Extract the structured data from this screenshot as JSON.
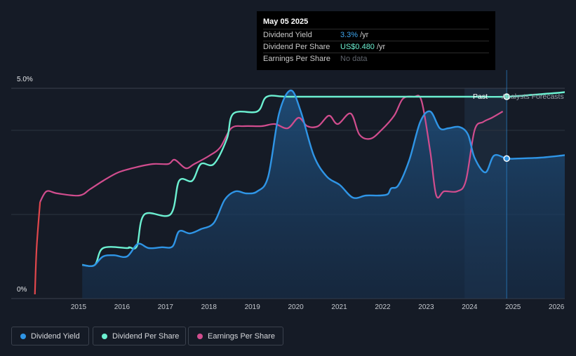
{
  "tooltip": {
    "date": "May 05 2025",
    "rows": [
      {
        "label": "Dividend Yield",
        "value": "3.3%",
        "unit": "/yr",
        "color": "#3ea7f0"
      },
      {
        "label": "Dividend Per Share",
        "value": "US$0.480",
        "unit": "/yr",
        "color": "#6cf0d1"
      },
      {
        "label": "Earnings Per Share",
        "value": "No data",
        "unit": "",
        "color": "#5f646c"
      }
    ]
  },
  "labels": {
    "past": "Past",
    "forecast": "Analysts Forecasts"
  },
  "legend": [
    {
      "label": "Dividend Yield",
      "color": "#2f95e6"
    },
    {
      "label": "Dividend Per Share",
      "color": "#6cf0d1"
    },
    {
      "label": "Earnings Per Share",
      "color": "#d14d8e"
    }
  ],
  "chart_data": {
    "type": "line",
    "title": "",
    "xlabel": "",
    "ylabel": "",
    "y_tick_labels": [
      "5.0%",
      "0%"
    ],
    "x_tick_labels": [
      "2015",
      "2016",
      "2017",
      "2018",
      "2019",
      "2020",
      "2021",
      "2022",
      "2023",
      "2024",
      "2025",
      "2026"
    ],
    "x_range": [
      2014.0,
      2027.0
    ],
    "y_range": [
      0,
      5.0
    ],
    "current_date": 2025.34,
    "forecast_start": 2024.37,
    "grid": true,
    "legend_position": "bottom-left",
    "series": [
      {
        "name": "Dividend Yield",
        "unit": "%",
        "color": "#2f95e6",
        "area": true,
        "points": [
          [
            2015.57,
            0.8
          ],
          [
            2015.75,
            0.77
          ],
          [
            2015.86,
            0.8
          ],
          [
            2016.05,
            1.0
          ],
          [
            2016.3,
            1.03
          ],
          [
            2016.6,
            1.0
          ],
          [
            2016.85,
            1.3
          ],
          [
            2017.1,
            1.2
          ],
          [
            2017.4,
            1.22
          ],
          [
            2017.65,
            1.24
          ],
          [
            2017.8,
            1.6
          ],
          [
            2018.05,
            1.55
          ],
          [
            2018.3,
            1.65
          ],
          [
            2018.6,
            1.8
          ],
          [
            2018.85,
            2.35
          ],
          [
            2019.1,
            2.55
          ],
          [
            2019.35,
            2.5
          ],
          [
            2019.6,
            2.55
          ],
          [
            2019.85,
            2.9
          ],
          [
            2020.1,
            4.4
          ],
          [
            2020.37,
            4.95
          ],
          [
            2020.6,
            4.45
          ],
          [
            2020.9,
            3.4
          ],
          [
            2021.2,
            2.9
          ],
          [
            2021.5,
            2.7
          ],
          [
            2021.8,
            2.4
          ],
          [
            2022.1,
            2.45
          ],
          [
            2022.4,
            2.45
          ],
          [
            2022.6,
            2.48
          ],
          [
            2022.68,
            2.62
          ],
          [
            2022.85,
            2.7
          ],
          [
            2023.1,
            3.3
          ],
          [
            2023.35,
            4.2
          ],
          [
            2023.58,
            4.45
          ],
          [
            2023.8,
            4.05
          ],
          [
            2024.0,
            4.05
          ],
          [
            2024.25,
            4.08
          ],
          [
            2024.45,
            3.9
          ],
          [
            2024.6,
            3.35
          ],
          [
            2024.85,
            3.0
          ],
          [
            2025.05,
            3.4
          ],
          [
            2025.34,
            3.33
          ],
          [
            2025.6,
            3.33
          ],
          [
            2026.1,
            3.35
          ],
          [
            2026.6,
            3.4
          ],
          [
            2027.0,
            3.45
          ]
        ]
      },
      {
        "name": "Dividend Per Share",
        "unit": "US$",
        "color": "#6cf0d1",
        "points": [
          [
            2015.57,
            0.8
          ],
          [
            2015.86,
            0.8
          ],
          [
            2016.05,
            1.2
          ],
          [
            2016.6,
            1.2
          ],
          [
            2016.65,
            1.22
          ],
          [
            2016.83,
            1.25
          ],
          [
            2017.0,
            2.0
          ],
          [
            2017.6,
            2.0
          ],
          [
            2017.8,
            2.8
          ],
          [
            2018.1,
            2.8
          ],
          [
            2018.3,
            3.2
          ],
          [
            2018.6,
            3.2
          ],
          [
            2018.9,
            3.8
          ],
          [
            2019.05,
            4.4
          ],
          [
            2019.6,
            4.45
          ],
          [
            2019.82,
            4.8
          ],
          [
            2020.3,
            4.8
          ],
          [
            2021.5,
            4.8
          ],
          [
            2022.5,
            4.8
          ],
          [
            2023.5,
            4.8
          ],
          [
            2024.5,
            4.8
          ],
          [
            2025.34,
            4.8
          ],
          [
            2026.0,
            4.85
          ],
          [
            2026.6,
            4.9
          ],
          [
            2027.0,
            4.95
          ]
        ]
      },
      {
        "name": "Earnings Per Share",
        "unit": "US$",
        "color": "#d14d8e",
        "points": [
          [
            2014.48,
            0.1
          ],
          [
            2014.52,
            1.2
          ],
          [
            2014.6,
            2.3
          ],
          [
            2014.75,
            2.55
          ],
          [
            2015.0,
            2.5
          ],
          [
            2015.5,
            2.45
          ],
          [
            2015.75,
            2.6
          ],
          [
            2016.05,
            2.8
          ],
          [
            2016.4,
            3.0
          ],
          [
            2016.8,
            3.12
          ],
          [
            2017.2,
            3.2
          ],
          [
            2017.55,
            3.2
          ],
          [
            2017.7,
            3.3
          ],
          [
            2017.95,
            3.1
          ],
          [
            2018.15,
            3.2
          ],
          [
            2018.5,
            3.4
          ],
          [
            2018.75,
            3.6
          ],
          [
            2019.0,
            4.05
          ],
          [
            2019.3,
            4.1
          ],
          [
            2019.7,
            4.1
          ],
          [
            2020.0,
            4.15
          ],
          [
            2020.3,
            4.05
          ],
          [
            2020.55,
            4.3
          ],
          [
            2020.75,
            4.1
          ],
          [
            2021.0,
            4.1
          ],
          [
            2021.25,
            4.35
          ],
          [
            2021.45,
            4.15
          ],
          [
            2021.75,
            4.4
          ],
          [
            2021.95,
            3.9
          ],
          [
            2022.2,
            3.8
          ],
          [
            2022.45,
            4.0
          ],
          [
            2022.75,
            4.35
          ],
          [
            2022.95,
            4.75
          ],
          [
            2023.2,
            4.8
          ],
          [
            2023.38,
            4.7
          ],
          [
            2023.58,
            3.5
          ],
          [
            2023.72,
            2.45
          ],
          [
            2023.9,
            2.55
          ],
          [
            2024.2,
            2.55
          ],
          [
            2024.4,
            2.8
          ],
          [
            2024.6,
            4.0
          ],
          [
            2024.8,
            4.2
          ],
          [
            2025.0,
            4.3
          ],
          [
            2025.25,
            4.45
          ]
        ]
      }
    ]
  }
}
